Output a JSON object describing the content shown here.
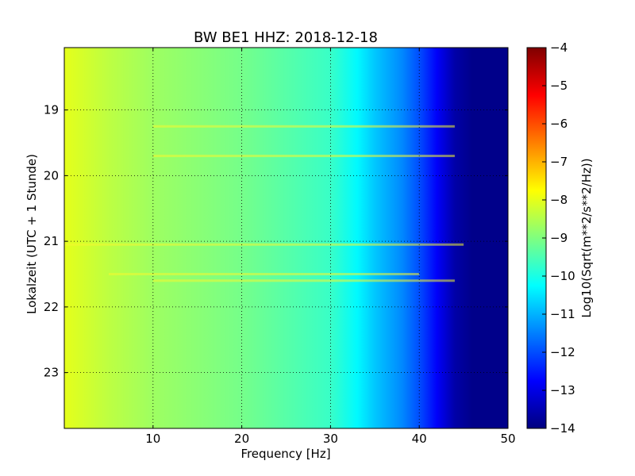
{
  "chart_data": {
    "type": "heatmap",
    "title": "BW BE1 HHZ: 2018-12-18",
    "xlabel": "Frequency [Hz]",
    "ylabel": "Lokalzeit (UTC + 1 Stunde)",
    "xlim": [
      0,
      50
    ],
    "ylim": [
      18.05,
      23.85
    ],
    "y_inverted": true,
    "x_ticks": [
      10,
      20,
      30,
      40,
      50
    ],
    "x_tick_labels": [
      "10",
      "20",
      "30",
      "40",
      "50"
    ],
    "y_ticks": [
      19,
      20,
      21,
      22,
      23
    ],
    "y_tick_labels": [
      "19",
      "20",
      "21",
      "22",
      "23"
    ],
    "grid": true,
    "colormap": "jet",
    "colorbar": {
      "label": "Log10(Sqrt(m**2/s**2/Hz))",
      "range": [
        -14,
        -4
      ],
      "ticks": [
        -4,
        -5,
        -6,
        -7,
        -8,
        -9,
        -10,
        -11,
        -12,
        -13,
        -14
      ],
      "tick_labels": [
        "−4",
        "−5",
        "−6",
        "−7",
        "−8",
        "−9",
        "−10",
        "−11",
        "−12",
        "−13",
        "−14"
      ]
    },
    "spectral_profile": {
      "frequency_hz": [
        0,
        5,
        10,
        15,
        20,
        25,
        30,
        33,
        35,
        38,
        40,
        42,
        44,
        46,
        50
      ],
      "log10_amplitude": [
        -8.0,
        -8.4,
        -8.7,
        -8.9,
        -9.1,
        -9.4,
        -9.7,
        -10.3,
        -10.8,
        -11.4,
        -12.0,
        -12.8,
        -13.6,
        -13.9,
        -13.9
      ]
    },
    "bright_lines": [
      {
        "time_h": 19.25,
        "freq_from_hz": 10,
        "freq_to_hz": 44
      },
      {
        "time_h": 19.7,
        "freq_from_hz": 10,
        "freq_to_hz": 44
      },
      {
        "time_h": 21.05,
        "freq_from_hz": 0,
        "freq_to_hz": 45
      },
      {
        "time_h": 21.5,
        "freq_from_hz": 5,
        "freq_to_hz": 40
      },
      {
        "time_h": 21.6,
        "freq_from_hz": 10,
        "freq_to_hz": 44
      }
    ]
  }
}
